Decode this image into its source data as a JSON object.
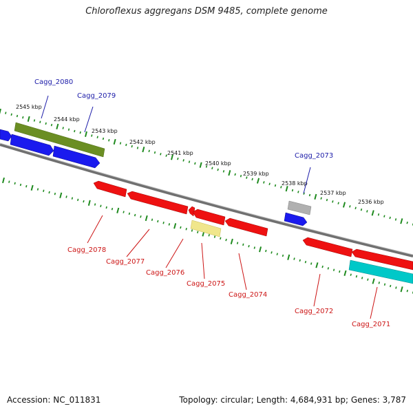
{
  "title": "Chloroflexus aggregans DSM 9485, complete genome",
  "footer": {
    "accession": "Accession: NC_011831",
    "summary": "Topology: circular; Length: 4,684,931 bp; Genes: 3,787"
  },
  "colors": {
    "backbone": "#8a8a8a",
    "tick": "#1e8a1e",
    "label_forward": "#1a1aa8",
    "label_reverse": "#cc1414"
  },
  "kbp_labels": [
    "2545 kbp",
    "2544 kbp",
    "2543 kbp",
    "2542 kbp",
    "2541 kbp",
    "2540 kbp",
    "2539 kbp",
    "2538 kbp",
    "2537 kbp",
    "2536 kbp"
  ],
  "genes_forward": [
    {
      "label": "Cagg_2080",
      "color": "#6b8e23"
    },
    {
      "label": "Cagg_2079",
      "color": "#1a1aee"
    },
    {
      "label": "Cagg_2073",
      "color": "#b0b0b0"
    }
  ],
  "genes_reverse": [
    {
      "label": "Cagg_2078",
      "color": "#ee1111"
    },
    {
      "label": "Cagg_2077",
      "color": "#ee1111"
    },
    {
      "label": "Cagg_2076",
      "color": "#ee1111"
    },
    {
      "label": "Cagg_2075",
      "color": "#f0e68c"
    },
    {
      "label": "Cagg_2074",
      "color": "#ee1111"
    },
    {
      "label": "Cagg_2072",
      "color": "#ee1111"
    },
    {
      "label": "Cagg_2071",
      "color": "#00c8c8"
    }
  ]
}
